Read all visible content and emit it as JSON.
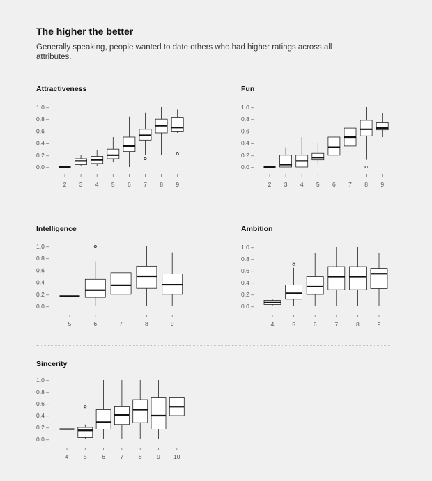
{
  "header": {
    "title": "The higher the better",
    "subtitle": "Generally speaking, people wanted to date others who had higher ratings across all attributes."
  },
  "colors": {
    "background": "#f0f0f0",
    "box_fill": "#ffffff",
    "stroke": "#222222",
    "median": "#111111",
    "divider": "#c4c4c4"
  },
  "chart_data": [
    {
      "type": "boxplot",
      "title": "Attractiveness",
      "ylim": [
        0,
        1
      ],
      "yticks": [
        "0.0 –",
        "0.2 –",
        "0.4 –",
        "0.6 –",
        "0.8 –",
        "1.0 –"
      ],
      "categories": [
        "2",
        "3",
        "4",
        "5",
        "6",
        "7",
        "8",
        "9"
      ],
      "boxes": [
        {
          "min": 0.0,
          "q1": 0.0,
          "median": 0.0,
          "q3": 0.0,
          "max": 0.0,
          "outliers": []
        },
        {
          "min": 0.02,
          "q1": 0.04,
          "median": 0.1,
          "q3": 0.14,
          "max": 0.2,
          "outliers": []
        },
        {
          "min": 0.02,
          "q1": 0.06,
          "median": 0.12,
          "q3": 0.18,
          "max": 0.28,
          "outliers": []
        },
        {
          "min": 0.08,
          "q1": 0.14,
          "median": 0.2,
          "q3": 0.3,
          "max": 0.5,
          "outliers": []
        },
        {
          "min": 0.0,
          "q1": 0.26,
          "median": 0.35,
          "q3": 0.5,
          "max": 0.84,
          "outliers": []
        },
        {
          "min": 0.2,
          "q1": 0.45,
          "median": 0.53,
          "q3": 0.63,
          "max": 0.91,
          "outliers": [
            0.14
          ]
        },
        {
          "min": 0.2,
          "q1": 0.57,
          "median": 0.69,
          "q3": 0.8,
          "max": 1.0,
          "outliers": []
        },
        {
          "min": 0.57,
          "q1": 0.6,
          "median": 0.66,
          "q3": 0.83,
          "max": 0.96,
          "outliers": [
            0.22
          ]
        }
      ]
    },
    {
      "type": "boxplot",
      "title": "Fun",
      "ylim": [
        0,
        1
      ],
      "yticks": [
        "0.0 –",
        "0.2 –",
        "0.4 –",
        "0.6 –",
        "0.8 –",
        "1.0 –"
      ],
      "categories": [
        "2",
        "3",
        "4",
        "5",
        "6",
        "7",
        "8",
        "9"
      ],
      "boxes": [
        {
          "min": 0.0,
          "q1": 0.0,
          "median": 0.0,
          "q3": 0.0,
          "max": 0.0,
          "outliers": []
        },
        {
          "min": 0.0,
          "q1": 0.0,
          "median": 0.04,
          "q3": 0.2,
          "max": 0.33,
          "outliers": []
        },
        {
          "min": 0.0,
          "q1": 0.0,
          "median": 0.1,
          "q3": 0.2,
          "max": 0.5,
          "outliers": []
        },
        {
          "min": 0.06,
          "q1": 0.12,
          "median": 0.16,
          "q3": 0.23,
          "max": 0.4,
          "outliers": []
        },
        {
          "min": 0.0,
          "q1": 0.2,
          "median": 0.33,
          "q3": 0.5,
          "max": 0.9,
          "outliers": []
        },
        {
          "min": 0.0,
          "q1": 0.35,
          "median": 0.5,
          "q3": 0.65,
          "max": 1.0,
          "outliers": []
        },
        {
          "min": 0.12,
          "q1": 0.52,
          "median": 0.63,
          "q3": 0.78,
          "max": 1.0,
          "outliers": [
            0.0
          ]
        },
        {
          "min": 0.5,
          "q1": 0.62,
          "median": 0.65,
          "q3": 0.75,
          "max": 0.9,
          "outliers": []
        }
      ]
    },
    {
      "type": "boxplot",
      "title": "Intelligence",
      "ylim": [
        0,
        1
      ],
      "yticks": [
        "0.0 –",
        "0.2 –",
        "0.4 –",
        "0.6 –",
        "0.8 –",
        "1.0 –"
      ],
      "categories": [
        "5",
        "6",
        "7",
        "8",
        "9"
      ],
      "boxes": [
        {
          "min": 0.17,
          "q1": 0.17,
          "median": 0.17,
          "q3": 0.17,
          "max": 0.17,
          "outliers": []
        },
        {
          "min": 0.0,
          "q1": 0.15,
          "median": 0.27,
          "q3": 0.45,
          "max": 0.75,
          "outliers": [
            1.0
          ]
        },
        {
          "min": 0.0,
          "q1": 0.2,
          "median": 0.35,
          "q3": 0.56,
          "max": 1.0,
          "outliers": []
        },
        {
          "min": 0.0,
          "q1": 0.3,
          "median": 0.5,
          "q3": 0.67,
          "max": 1.0,
          "outliers": []
        },
        {
          "min": 0.0,
          "q1": 0.2,
          "median": 0.36,
          "q3": 0.54,
          "max": 0.9,
          "outliers": []
        }
      ]
    },
    {
      "type": "boxplot",
      "title": "Ambition",
      "ylim": [
        0,
        1
      ],
      "yticks": [
        "0.0 –",
        "0.2 –",
        "0.4 –",
        "0.6 –",
        "0.8 –",
        "1.0 –"
      ],
      "categories": [
        "4",
        "5",
        "6",
        "7",
        "8",
        "9"
      ],
      "boxes": [
        {
          "min": 0.0,
          "q1": 0.03,
          "median": 0.06,
          "q3": 0.1,
          "max": 0.13,
          "outliers": []
        },
        {
          "min": 0.0,
          "q1": 0.12,
          "median": 0.22,
          "q3": 0.36,
          "max": 0.65,
          "outliers": [
            0.71
          ]
        },
        {
          "min": 0.0,
          "q1": 0.2,
          "median": 0.33,
          "q3": 0.5,
          "max": 0.9,
          "outliers": []
        },
        {
          "min": 0.0,
          "q1": 0.28,
          "median": 0.5,
          "q3": 0.67,
          "max": 1.0,
          "outliers": []
        },
        {
          "min": 0.0,
          "q1": 0.28,
          "median": 0.5,
          "q3": 0.67,
          "max": 1.0,
          "outliers": []
        },
        {
          "min": 0.0,
          "q1": 0.3,
          "median": 0.55,
          "q3": 0.64,
          "max": 0.9,
          "outliers": []
        }
      ]
    },
    {
      "type": "boxplot",
      "title": "Sincerity",
      "ylim": [
        0,
        1
      ],
      "yticks": [
        "0.0 –",
        "0.2 –",
        "0.4 –",
        "0.6 –",
        "0.8 –",
        "1.0 –"
      ],
      "categories": [
        "4",
        "5",
        "6",
        "7",
        "8",
        "9",
        "10"
      ],
      "boxes": [
        {
          "min": 0.17,
          "q1": 0.17,
          "median": 0.17,
          "q3": 0.17,
          "max": 0.17,
          "outliers": []
        },
        {
          "min": 0.0,
          "q1": 0.03,
          "median": 0.15,
          "q3": 0.2,
          "max": 0.25,
          "outliers": [
            0.55
          ]
        },
        {
          "min": 0.0,
          "q1": 0.17,
          "median": 0.29,
          "q3": 0.5,
          "max": 1.0,
          "outliers": []
        },
        {
          "min": 0.0,
          "q1": 0.25,
          "median": 0.41,
          "q3": 0.56,
          "max": 1.0,
          "outliers": []
        },
        {
          "min": 0.0,
          "q1": 0.28,
          "median": 0.5,
          "q3": 0.67,
          "max": 1.0,
          "outliers": []
        },
        {
          "min": 0.0,
          "q1": 0.17,
          "median": 0.4,
          "q3": 0.7,
          "max": 1.0,
          "outliers": []
        },
        {
          "min": 0.4,
          "q1": 0.4,
          "median": 0.55,
          "q3": 0.7,
          "max": 0.7,
          "outliers": []
        }
      ]
    }
  ]
}
